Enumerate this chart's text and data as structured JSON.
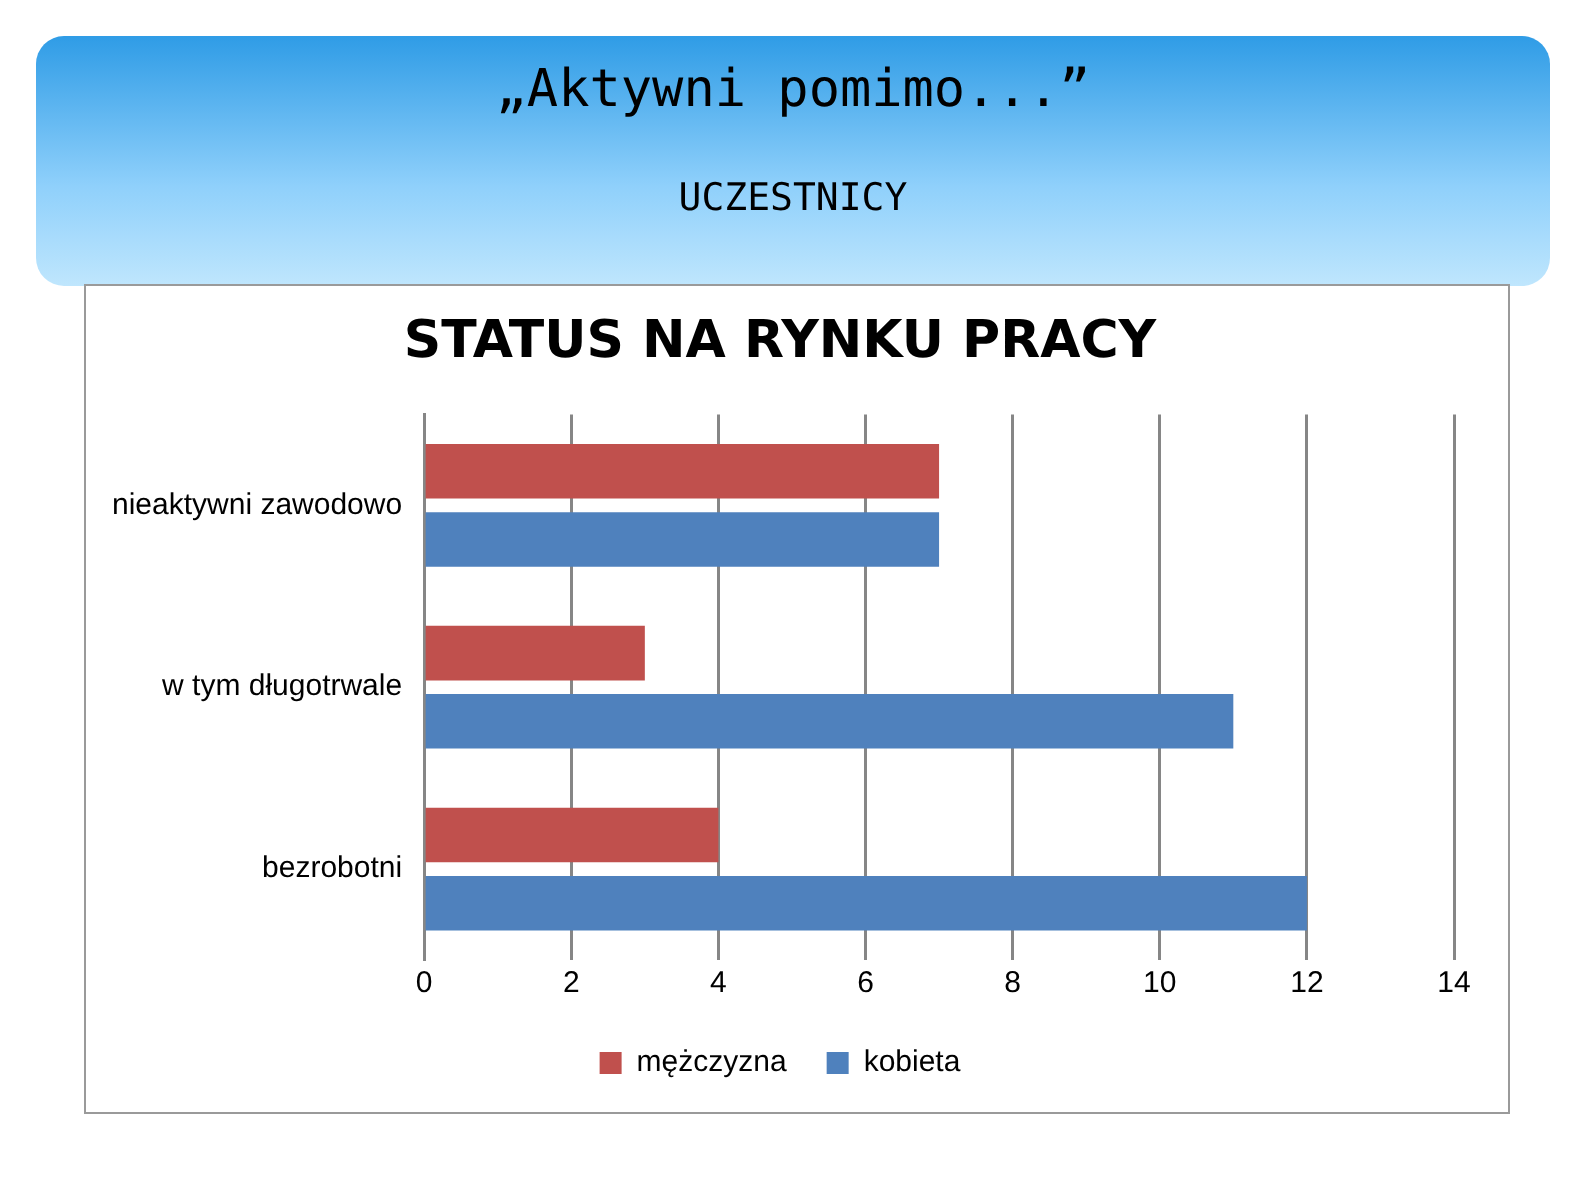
{
  "chart_data": {
    "type": "bar",
    "orientation": "horizontal",
    "title": "STATUS NA RYNKU PRACY",
    "annotations": [
      "„Aktywni pomimo...”",
      "UCZESTNICY"
    ],
    "categories": [
      "nieaktywni zawodowo",
      "w tym długotrwale",
      "bezrobotni"
    ],
    "series": [
      {
        "name": "mężczyzna",
        "color": "#c0504d",
        "values": [
          7,
          3,
          4
        ]
      },
      {
        "name": "kobieta",
        "color": "#4f81bd",
        "values": [
          7,
          11,
          12
        ]
      }
    ],
    "xlim": [
      0,
      14
    ],
    "xticks": [
      0,
      2,
      4,
      6,
      8,
      10,
      12,
      14
    ],
    "grid": "x",
    "legend": "bottom"
  }
}
